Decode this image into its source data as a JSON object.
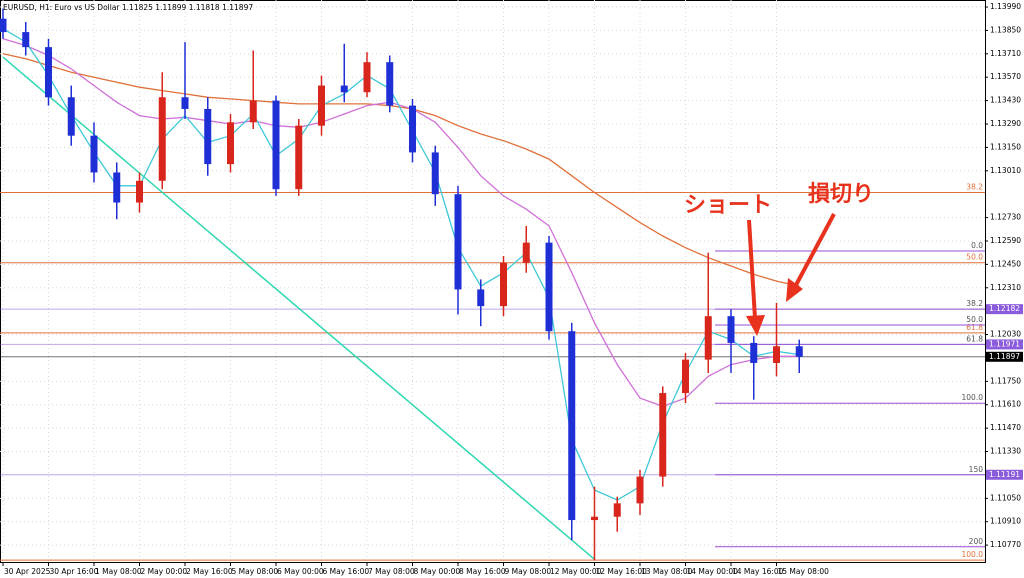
{
  "chart_data": {
    "type": "candlestick",
    "title": "EURUSD, H1:  Euro vs US Dollar  1.11825 1.11899 1.11818 1.11897",
    "categories": [
      "30 Apr 2025",
      null,
      "30 Apr 16:00",
      null,
      "1 May 08:00",
      null,
      "2 May 00:00",
      null,
      "2 May 16:00",
      null,
      "5 May 08:00",
      null,
      "6 May 00:00",
      null,
      "6 May 16:00",
      null,
      "7 May 08:00",
      null,
      "8 May 00:00",
      null,
      "8 May 16:00",
      null,
      "9 May 08:00",
      null,
      "12 May 00:00",
      null,
      "12 May 16:00",
      null,
      "13 May 08:00",
      null,
      "14 May 00:00",
      null,
      "14 May 16:00",
      null,
      "15 May 08:00",
      null
    ],
    "open": [
      1.1392,
      1.1384,
      1.1375,
      1.1345,
      1.1322,
      1.13,
      1.1282,
      1.1295,
      1.1345,
      1.1338,
      1.1305,
      1.133,
      1.1343,
      1.129,
      1.1328,
      1.1352,
      1.1348,
      1.1366,
      1.134,
      1.1312,
      1.1287,
      1.123,
      1.122,
      1.1246,
      1.1258,
      1.1205,
      1.1092,
      1.1094,
      1.1102,
      1.1118,
      1.1168,
      1.1188,
      1.1214,
      1.1198,
      1.1186,
      1.1196
    ],
    "high": [
      1.1398,
      1.139,
      1.138,
      1.1352,
      1.133,
      1.1306,
      1.13,
      1.136,
      1.1378,
      1.1345,
      1.1335,
      1.1373,
      1.1346,
      1.1332,
      1.1358,
      1.1377,
      1.1372,
      1.137,
      1.1344,
      1.1316,
      1.1292,
      1.1236,
      1.125,
      1.1268,
      1.1262,
      1.121,
      1.1112,
      1.1106,
      1.1122,
      1.1172,
      1.1192,
      1.1252,
      1.1218,
      1.1202,
      1.1222,
      1.12
    ],
    "low": [
      1.138,
      1.137,
      1.134,
      1.1316,
      1.1294,
      1.1272,
      1.1276,
      1.129,
      1.1332,
      1.1298,
      1.13,
      1.1326,
      1.1286,
      1.1286,
      1.1322,
      1.1342,
      1.1345,
      1.1336,
      1.1306,
      1.128,
      1.1215,
      1.1208,
      1.1214,
      1.124,
      1.12,
      1.108,
      1.1068,
      1.1085,
      1.1095,
      1.1112,
      1.1162,
      1.118,
      1.118,
      1.1164,
      1.1178,
      1.118
    ],
    "close": [
      1.1384,
      1.1375,
      1.1345,
      1.1322,
      1.13,
      1.1282,
      1.1295,
      1.1345,
      1.1338,
      1.1305,
      1.133,
      1.1343,
      1.129,
      1.1328,
      1.1352,
      1.1348,
      1.1366,
      1.134,
      1.1312,
      1.1287,
      1.123,
      1.122,
      1.1246,
      1.1258,
      1.1205,
      1.1092,
      1.1094,
      1.1102,
      1.1118,
      1.1168,
      1.1188,
      1.1214,
      1.1198,
      1.1186,
      1.1196,
      1.11897
    ],
    "up_color": "#d9261c",
    "down_color": "#1f2fd6",
    "lines": [
      {
        "color": "#e0703a",
        "values": [
          1.1371,
          1.1368,
          1.1364,
          1.136,
          1.1357,
          1.1354,
          1.1351,
          1.1349,
          1.1347,
          1.1345,
          1.1344,
          1.1343,
          1.1342,
          1.1341,
          1.1341,
          1.1341,
          1.1341,
          1.134,
          1.1338,
          1.1334,
          1.1328,
          1.1323,
          1.1319,
          1.1314,
          1.1308,
          1.1298,
          1.1288,
          1.1279,
          1.127,
          1.1262,
          1.1255,
          1.1249,
          1.1244,
          1.1239,
          1.1235,
          1.1232
        ]
      },
      {
        "color": "#d070d8",
        "values": [
          1.138,
          1.1376,
          1.137,
          1.1362,
          1.1352,
          1.1342,
          1.1334,
          1.1332,
          1.1333,
          1.1331,
          1.1329,
          1.1331,
          1.1328,
          1.1327,
          1.133,
          1.1335,
          1.134,
          1.1342,
          1.1338,
          1.133,
          1.1315,
          1.1298,
          1.1286,
          1.1278,
          1.1268,
          1.124,
          1.121,
          1.1185,
          1.1165,
          1.116,
          1.1165,
          1.1178,
          1.1185,
          1.1188,
          1.119,
          1.119
        ]
      },
      {
        "color": "#3fc8d8",
        "values": [
          1.1386,
          1.1378,
          1.1358,
          1.1334,
          1.1312,
          1.1292,
          1.1292,
          1.132,
          1.1334,
          1.1318,
          1.1322,
          1.1335,
          1.131,
          1.132,
          1.134,
          1.1347,
          1.1358,
          1.135,
          1.1325,
          1.13,
          1.1255,
          1.1232,
          1.124,
          1.1252,
          1.1225,
          1.114,
          1.111,
          1.1104,
          1.1112,
          1.115,
          1.118,
          1.1205,
          1.12,
          1.119,
          1.1193,
          1.1191
        ]
      }
    ],
    "fib_levels": [
      {
        "value": 1.1288,
        "label": "38.2"
      },
      {
        "value": 1.1246,
        "label": "50.0"
      },
      {
        "value": 1.1204,
        "label": "61.8"
      },
      {
        "value": 1.1068,
        "label": "100.0"
      }
    ],
    "fib_color": "#e0703a",
    "fib2_levels": [
      {
        "value": 1.1253,
        "label": "0.0"
      },
      {
        "value": 1.12182,
        "label": "38.2"
      },
      {
        "value": 1.12087,
        "label": "50.0"
      },
      {
        "value": 1.11971,
        "label": "61.8"
      },
      {
        "value": 1.11619,
        "label": "100.0"
      },
      {
        "value": 1.11191,
        "label": "150"
      },
      {
        "value": 1.1076,
        "label": "200"
      }
    ],
    "fib2_color": "#9a4fd0",
    "price_lines": [
      {
        "value": 1.12182,
        "color": "#8a5cdc"
      },
      {
        "value": 1.11971,
        "color": "#8a5cdc"
      },
      {
        "value": 1.11897,
        "color": "#000000"
      },
      {
        "value": 1.11191,
        "color": "#8a5cdc"
      }
    ],
    "trendline": {
      "color": "#2ed8b0",
      "from": [
        0,
        1.1369
      ],
      "to": [
        26,
        1.10685
      ]
    },
    "annotations": [
      {
        "text": "ショート"
      },
      {
        "text": "損切り"
      }
    ],
    "ylim": [
      1.10663,
      1.14032
    ],
    "yticks": [
      {
        "value": 1.1399,
        "label": "1.13990"
      },
      {
        "value": 1.1385,
        "label": "1.13850"
      },
      {
        "value": 1.1371,
        "label": "1.13710"
      },
      {
        "value": 1.1357,
        "label": "1.13570"
      },
      {
        "value": 1.1343,
        "label": "1.13430"
      },
      {
        "value": 1.1329,
        "label": "1.13290"
      },
      {
        "value": 1.1315,
        "label": "1.13150"
      },
      {
        "value": 1.1301,
        "label": "1.13010"
      },
      {
        "value": 1.1273,
        "label": "1.12730"
      },
      {
        "value": 1.1259,
        "label": "1.12590"
      },
      {
        "value": 1.1245,
        "label": "1.12450"
      },
      {
        "value": 1.1231,
        "label": "1.12310"
      },
      {
        "value": 1.1203,
        "label": "1.12030"
      },
      {
        "value": 1.1175,
        "label": "1.11750"
      },
      {
        "value": 1.1161,
        "label": "1.11610"
      },
      {
        "value": 1.1147,
        "label": "1.11470"
      },
      {
        "value": 1.1133,
        "label": "1.11330"
      },
      {
        "value": 1.1105,
        "label": "1.11050"
      },
      {
        "value": 1.1091,
        "label": "1.10910"
      },
      {
        "value": 1.1077,
        "label": "1.10770"
      }
    ],
    "grid": true
  }
}
